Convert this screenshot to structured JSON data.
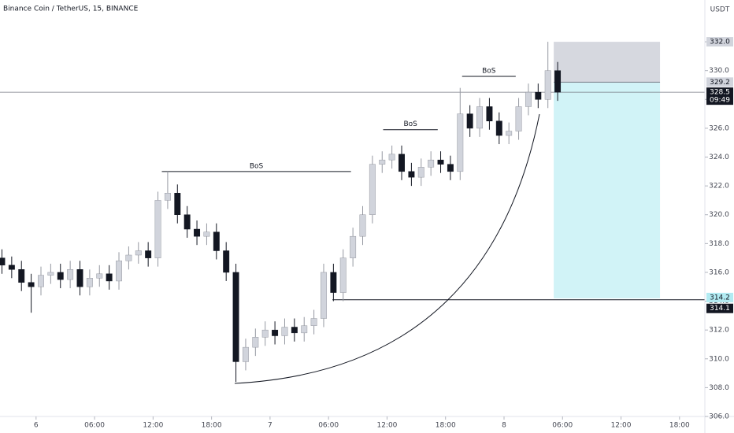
{
  "chart_data": {
    "type": "candlestick",
    "title": "Binance Coin / TetherUS, 15, BINANCE",
    "currency": "USDT",
    "x": [
      -3.5,
      -2.5,
      -1.5,
      -0.5,
      0.5,
      1.5,
      2.5,
      3.5,
      4.5,
      5.5,
      6.5,
      7.5,
      8.5,
      9.5,
      10.5,
      11.5,
      12.5,
      13.5,
      14.5,
      15.5,
      16.5,
      17.5,
      18.5,
      19.5,
      20.5,
      21.5,
      22.5,
      23.5,
      24.5,
      25.5,
      26.5,
      27.5,
      28.5,
      29.5,
      30.5,
      31.5,
      32.5,
      33.5,
      34.5,
      35.5,
      36.5,
      37.5,
      38.5,
      39.5,
      40.5,
      41.5,
      42.5,
      43.5,
      44.5,
      45.5,
      46.5,
      47.5,
      48.5,
      49.5,
      50.5,
      51.5,
      52.5,
      53.5
    ],
    "open": [
      317.0,
      316.5,
      316.2,
      315.3,
      315.0,
      315.8,
      316.0,
      315.5,
      316.2,
      315.0,
      315.6,
      315.9,
      315.4,
      316.8,
      317.2,
      317.5,
      317.0,
      321.0,
      321.5,
      320.0,
      319.0,
      318.5,
      318.8,
      317.5,
      316.0,
      309.8,
      310.8,
      311.5,
      312.0,
      311.6,
      312.2,
      311.8,
      312.3,
      312.8,
      316.0,
      314.6,
      317.0,
      318.5,
      320.0,
      323.5,
      323.8,
      324.2,
      323.0,
      322.6,
      323.3,
      323.8,
      323.5,
      323.0,
      327.0,
      326.0,
      327.5,
      326.5,
      325.5,
      325.8,
      327.5,
      328.5,
      328.0,
      330.0
    ],
    "high": [
      317.6,
      317.1,
      316.8,
      315.9,
      316.4,
      316.6,
      316.6,
      316.8,
      316.8,
      316.2,
      316.5,
      316.5,
      317.4,
      317.8,
      318.1,
      318.1,
      321.6,
      323.0,
      322.1,
      320.6,
      319.6,
      319.4,
      319.4,
      318.1,
      316.6,
      311.4,
      312.1,
      312.6,
      312.6,
      312.8,
      312.8,
      312.9,
      313.4,
      316.6,
      316.6,
      317.6,
      319.1,
      320.6,
      324.1,
      324.4,
      324.8,
      324.8,
      323.6,
      323.9,
      324.4,
      324.4,
      324.1,
      328.8,
      327.6,
      328.1,
      328.1,
      327.1,
      326.4,
      328.1,
      329.1,
      329.1,
      332.0,
      330.6
    ],
    "low": [
      315.9,
      315.6,
      314.7,
      313.2,
      314.4,
      315.2,
      314.9,
      314.9,
      314.4,
      314.4,
      315.0,
      314.8,
      314.8,
      316.2,
      316.6,
      316.4,
      316.4,
      320.4,
      319.4,
      318.4,
      317.9,
      317.9,
      316.9,
      315.4,
      308.4,
      309.2,
      310.2,
      310.9,
      311.0,
      311.0,
      311.2,
      311.2,
      311.7,
      312.2,
      314.0,
      314.0,
      316.4,
      317.9,
      319.4,
      322.9,
      323.2,
      322.4,
      322.0,
      322.0,
      322.7,
      322.9,
      322.4,
      322.4,
      325.4,
      325.4,
      325.9,
      324.9,
      324.9,
      325.2,
      326.9,
      327.4,
      327.4,
      327.9
    ],
    "close": [
      316.5,
      316.2,
      315.3,
      315.0,
      315.8,
      316.0,
      315.5,
      316.2,
      315.0,
      315.6,
      315.9,
      315.4,
      316.8,
      317.2,
      317.5,
      317.0,
      321.0,
      321.5,
      320.0,
      319.0,
      318.5,
      318.8,
      317.5,
      316.0,
      309.8,
      310.8,
      311.5,
      312.0,
      311.6,
      312.2,
      311.8,
      312.3,
      312.8,
      316.0,
      314.6,
      317.0,
      318.5,
      320.0,
      323.5,
      323.8,
      324.2,
      323.0,
      322.6,
      323.3,
      323.8,
      323.5,
      323.0,
      327.0,
      326.0,
      327.5,
      326.5,
      325.5,
      325.8,
      327.5,
      328.5,
      328.0,
      330.0,
      328.5
    ],
    "up_color": "#d1d4dc",
    "down_color": "#131722",
    "xlim": [
      -3.7,
      68.6
    ],
    "xticks": [
      {
        "value": 0,
        "label": "6"
      },
      {
        "value": 6,
        "label": "06:00"
      },
      {
        "value": 12,
        "label": "12:00"
      },
      {
        "value": 18,
        "label": "18:00"
      },
      {
        "value": 24,
        "label": "7"
      },
      {
        "value": 30,
        "label": "06:00"
      },
      {
        "value": 36,
        "label": "12:00"
      },
      {
        "value": 42,
        "label": "18:00"
      },
      {
        "value": 48,
        "label": "8"
      },
      {
        "value": 54,
        "label": "06:00"
      },
      {
        "value": 60,
        "label": "12:00"
      },
      {
        "value": 66,
        "label": "18:00"
      }
    ],
    "ylim": [
      306,
      334.9
    ],
    "yticks": [
      {
        "value": 306,
        "label": "306.0"
      },
      {
        "value": 308,
        "label": "308.0"
      },
      {
        "value": 310,
        "label": "310.0"
      },
      {
        "value": 312,
        "label": "312.0"
      },
      {
        "value": 314,
        "label": "314.0"
      },
      {
        "value": 316,
        "label": "316.0"
      },
      {
        "value": 318,
        "label": "318.0"
      },
      {
        "value": 320,
        "label": "320.0"
      },
      {
        "value": 322,
        "label": "322.0"
      },
      {
        "value": 324,
        "label": "324.0"
      },
      {
        "value": 326,
        "label": "326.0"
      },
      {
        "value": 328,
        "label": "328.0"
      },
      {
        "value": 330,
        "label": "330.0"
      },
      {
        "value": 332,
        "label": "332.0"
      }
    ],
    "annotations": [
      {
        "label": "BoS",
        "y": 323.0,
        "x": [
          12.9,
          32.3
        ]
      },
      {
        "label": "BoS",
        "y": 325.9,
        "x": [
          35.6,
          41.2
        ]
      },
      {
        "label": "BoS",
        "y": 329.6,
        "x": [
          43.7,
          49.2
        ]
      }
    ],
    "level": {
      "value": 314.1,
      "label": "314.1",
      "x": [
        30.4,
        68.6
      ]
    },
    "last_price": {
      "value": 328.5,
      "label": "328.5",
      "countdown": "09:49"
    },
    "position": {
      "x": [
        53.1,
        64.0
      ],
      "stop": 332.0,
      "stop_label": "332.0",
      "entry": 329.2,
      "entry_label": "329.2",
      "target": 314.2,
      "target_label": "314.2",
      "stop_color": "#d1d4dc",
      "target_color": "#b2ebf2"
    }
  }
}
